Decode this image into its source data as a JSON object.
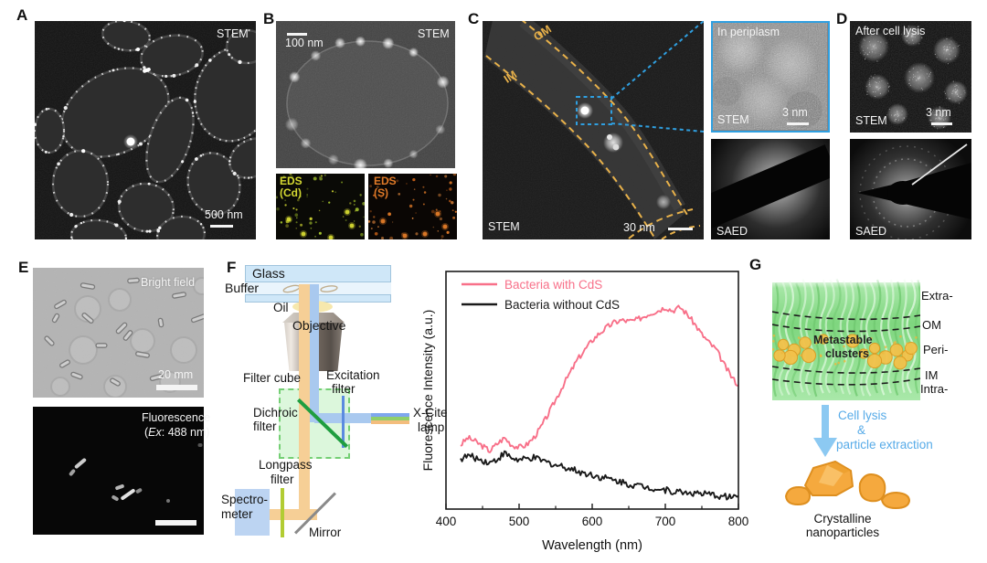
{
  "colors": {
    "pink_series": "#f87089",
    "black_series": "#1a1a1a",
    "membrane_dash_orange": "#e8b14a",
    "inset_link_blue": "#2f9fe0",
    "eds_cd_yellow": "#d4d832",
    "eds_s_orange": "#e07a28",
    "process_arrow_blue": "#8cc9f2",
    "process_text_blue": "#57abe8",
    "nanoparticle_orange": "#f5a93e",
    "membrane_green": "#8edc8e"
  },
  "panels": {
    "a": {
      "letter": "A",
      "stem": "STEM",
      "scale": "500 nm"
    },
    "b": {
      "letter": "B",
      "scale": "100 nm",
      "stem": "STEM",
      "eds_cd": [
        "EDS",
        "(Cd)"
      ],
      "eds_s": [
        "EDS",
        "(S)"
      ]
    },
    "c": {
      "letter": "C",
      "om": "OM",
      "im": "IM",
      "stem": "STEM",
      "scale": "30 nm",
      "inset": {
        "title": "In periplasm",
        "stem": "STEM",
        "scale": "3 nm"
      },
      "saed": "SAED"
    },
    "d": {
      "letter": "D",
      "title": "After cell lysis",
      "stem": "STEM",
      "scale": "3 nm",
      "saed": "SAED"
    },
    "e": {
      "letter": "E",
      "bright_field": "Bright field",
      "bf_scale": "20 mm",
      "fluor": "Fluorescence",
      "ex_open": "(",
      "ex_italic": "Ex",
      "ex_rest": ": 488 nm)"
    },
    "f": {
      "letter": "F",
      "glass": "Glass",
      "buffer": "Buffer",
      "oil": "Oil",
      "objective": "Objective",
      "filter_cube": "Filter cube",
      "excitation": [
        "Excitation",
        "filter"
      ],
      "dichroic": [
        "Dichroic",
        "filter"
      ],
      "xcite": [
        "X-Cite",
        "lamp"
      ],
      "longpass": [
        "Longpass",
        "filter"
      ],
      "spectrometer": [
        "Spectro-",
        "meter"
      ],
      "mirror": "Mirror"
    },
    "g": {
      "letter": "G",
      "extra": "Extra-",
      "om": "OM",
      "peri": "Peri-",
      "im": "IM",
      "intra": "Intra-",
      "metastable": [
        "Metastable",
        "clusters"
      ],
      "process": [
        "Cell lysis",
        "&",
        "particle extraction"
      ],
      "product": [
        "Crystalline",
        "nanoparticles"
      ]
    }
  },
  "chart_data": {
    "type": "line",
    "title": "",
    "xlabel": "Wavelength (nm)",
    "ylabel": "Fluorescence Intensity (a.u.)",
    "xlim": [
      400,
      800
    ],
    "ylim": [
      0,
      1
    ],
    "x_ticks": [
      400,
      500,
      600,
      700,
      800
    ],
    "x_minor_ticks": [
      450,
      550,
      650,
      750
    ],
    "grid": false,
    "legend_position": "top-left-inside",
    "x": [
      420,
      430,
      440,
      450,
      460,
      470,
      480,
      490,
      500,
      510,
      520,
      530,
      540,
      550,
      560,
      570,
      580,
      590,
      600,
      610,
      620,
      630,
      640,
      650,
      660,
      670,
      680,
      690,
      700,
      710,
      720,
      730,
      740,
      750,
      760,
      770,
      780,
      790,
      800
    ],
    "series": [
      {
        "name": "Bacteria with CdS",
        "color": "#f87089",
        "noise": 0.012,
        "y": [
          0.27,
          0.3,
          0.285,
          0.265,
          0.245,
          0.275,
          0.3,
          0.27,
          0.26,
          0.27,
          0.3,
          0.345,
          0.4,
          0.46,
          0.52,
          0.575,
          0.63,
          0.67,
          0.71,
          0.74,
          0.765,
          0.785,
          0.795,
          0.79,
          0.795,
          0.81,
          0.825,
          0.835,
          0.85,
          0.835,
          0.85,
          0.82,
          0.78,
          0.735,
          0.7,
          0.67,
          0.61,
          0.56,
          0.52
        ]
      },
      {
        "name": "Bacteria without CdS",
        "color": "#1a1a1a",
        "noise": 0.014,
        "y": [
          0.21,
          0.225,
          0.215,
          0.205,
          0.195,
          0.21,
          0.235,
          0.215,
          0.205,
          0.21,
          0.215,
          0.205,
          0.195,
          0.185,
          0.18,
          0.17,
          0.16,
          0.15,
          0.145,
          0.135,
          0.13,
          0.12,
          0.115,
          0.105,
          0.1,
          0.095,
          0.09,
          0.085,
          0.08,
          0.075,
          0.072,
          0.07,
          0.067,
          0.063,
          0.06,
          0.057,
          0.053,
          0.052,
          0.055
        ]
      }
    ]
  }
}
